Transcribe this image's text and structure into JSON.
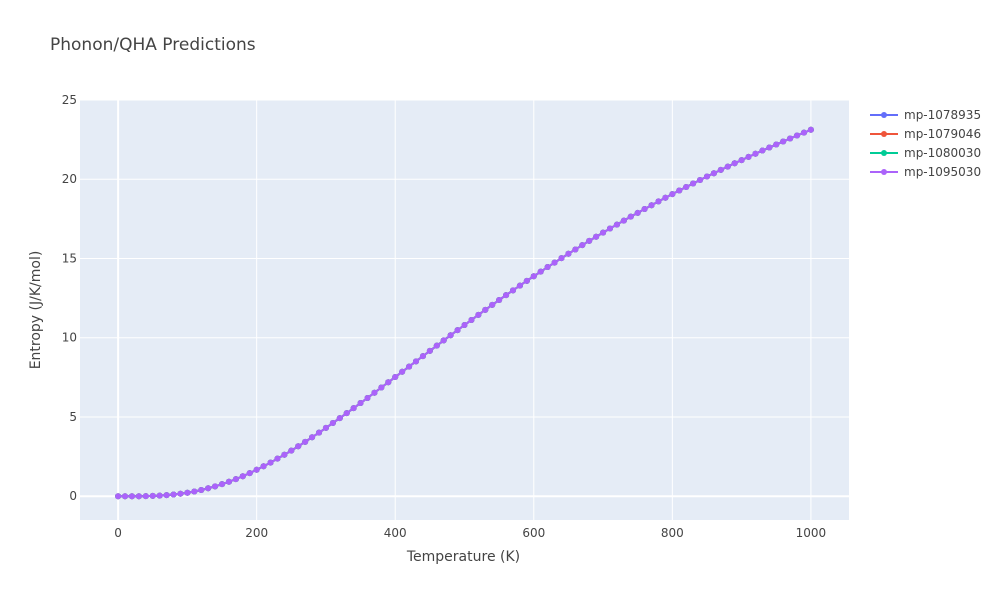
{
  "chart_data": {
    "type": "line",
    "title": "Phonon/QHA Predictions",
    "xlabel": "Temperature (K)",
    "ylabel": "Entropy (J/K/mol)",
    "xlim": [
      -55,
      1055
    ],
    "ylim": [
      -1.5,
      25
    ],
    "xticks": [
      0,
      200,
      400,
      600,
      800,
      1000
    ],
    "yticks": [
      0,
      5,
      10,
      15,
      20,
      25
    ],
    "grid": true,
    "legend": "right",
    "x": [
      0,
      10,
      20,
      30,
      40,
      50,
      60,
      70,
      80,
      90,
      100,
      110,
      120,
      130,
      140,
      150,
      160,
      170,
      180,
      190,
      200,
      210,
      220,
      230,
      240,
      250,
      260,
      270,
      280,
      290,
      300,
      310,
      320,
      330,
      340,
      350,
      360,
      370,
      380,
      390,
      400,
      410,
      420,
      430,
      440,
      450,
      460,
      470,
      480,
      490,
      500,
      510,
      520,
      530,
      540,
      550,
      560,
      570,
      580,
      590,
      600,
      610,
      620,
      630,
      640,
      650,
      660,
      670,
      680,
      690,
      700,
      710,
      720,
      730,
      740,
      750,
      760,
      770,
      780,
      790,
      800,
      810,
      820,
      830,
      840,
      850,
      860,
      870,
      880,
      890,
      900,
      910,
      920,
      930,
      940,
      950,
      960,
      970,
      980,
      990,
      1000
    ],
    "series": [
      {
        "name": "mp-1078935",
        "color": "#636efa",
        "values": [
          0,
          0,
          0,
          0,
          0.01,
          0.02,
          0.04,
          0.07,
          0.11,
          0.16,
          0.22,
          0.3,
          0.39,
          0.5,
          0.62,
          0.76,
          0.91,
          1.08,
          1.26,
          1.46,
          1.67,
          1.89,
          2.12,
          2.37,
          2.62,
          2.88,
          3.15,
          3.43,
          3.72,
          4.01,
          4.31,
          4.62,
          4.93,
          5.24,
          5.56,
          5.88,
          6.2,
          6.53,
          6.86,
          7.19,
          7.52,
          7.85,
          8.18,
          8.51,
          8.84,
          9.17,
          9.5,
          9.83,
          10.16,
          10.48,
          10.8,
          11.12,
          11.44,
          11.76,
          12.07,
          12.38,
          12.69,
          12.99,
          13.29,
          13.59,
          13.88,
          14.17,
          14.46,
          14.74,
          15.02,
          15.3,
          15.57,
          15.84,
          16.11,
          16.37,
          16.63,
          16.89,
          17.14,
          17.39,
          17.64,
          17.88,
          18.12,
          18.36,
          18.6,
          18.83,
          19.06,
          19.29,
          19.51,
          19.73,
          19.95,
          20.17,
          20.38,
          20.59,
          20.8,
          21.01,
          21.21,
          21.41,
          21.61,
          21.81,
          22,
          22.19,
          22.38,
          22.57,
          22.76,
          22.94,
          23.12
        ]
      },
      {
        "name": "mp-1079046",
        "color": "#ef553b",
        "values": [
          0,
          0,
          0,
          0,
          0.01,
          0.02,
          0.04,
          0.07,
          0.11,
          0.16,
          0.22,
          0.3,
          0.39,
          0.5,
          0.62,
          0.76,
          0.91,
          1.08,
          1.26,
          1.46,
          1.67,
          1.89,
          2.12,
          2.37,
          2.62,
          2.88,
          3.15,
          3.43,
          3.72,
          4.01,
          4.31,
          4.62,
          4.93,
          5.24,
          5.56,
          5.88,
          6.2,
          6.53,
          6.86,
          7.19,
          7.52,
          7.85,
          8.18,
          8.51,
          8.84,
          9.17,
          9.5,
          9.83,
          10.16,
          10.48,
          10.8,
          11.12,
          11.44,
          11.76,
          12.07,
          12.38,
          12.69,
          12.99,
          13.29,
          13.59,
          13.88,
          14.17,
          14.46,
          14.74,
          15.02,
          15.3,
          15.57,
          15.84,
          16.11,
          16.37,
          16.63,
          16.89,
          17.14,
          17.39,
          17.64,
          17.88,
          18.12,
          18.36,
          18.6,
          18.83,
          19.06,
          19.29,
          19.51,
          19.73,
          19.95,
          20.17,
          20.38,
          20.59,
          20.8,
          21.01,
          21.21,
          21.41,
          21.61,
          21.81,
          22,
          22.19,
          22.38,
          22.57,
          22.76,
          22.94,
          23.12
        ]
      },
      {
        "name": "mp-1080030",
        "color": "#00cc96",
        "values": [
          0,
          0,
          0,
          0,
          0.01,
          0.02,
          0.04,
          0.07,
          0.11,
          0.16,
          0.22,
          0.3,
          0.39,
          0.5,
          0.62,
          0.76,
          0.91,
          1.08,
          1.26,
          1.46,
          1.67,
          1.89,
          2.12,
          2.37,
          2.62,
          2.88,
          3.15,
          3.43,
          3.72,
          4.01,
          4.31,
          4.62,
          4.93,
          5.24,
          5.56,
          5.88,
          6.2,
          6.53,
          6.86,
          7.19,
          7.52,
          7.85,
          8.18,
          8.51,
          8.84,
          9.17,
          9.5,
          9.83,
          10.16,
          10.48,
          10.8,
          11.12,
          11.44,
          11.76,
          12.07,
          12.38,
          12.69,
          12.99,
          13.29,
          13.59,
          13.88,
          14.17,
          14.46,
          14.74,
          15.02,
          15.3,
          15.57,
          15.84,
          16.11,
          16.37,
          16.63,
          16.89,
          17.14,
          17.39,
          17.64,
          17.88,
          18.12,
          18.36,
          18.6,
          18.83,
          19.06,
          19.29,
          19.51,
          19.73,
          19.95,
          20.17,
          20.38,
          20.59,
          20.8,
          21.01,
          21.21,
          21.41,
          21.61,
          21.81,
          22,
          22.19,
          22.38,
          22.57,
          22.76,
          22.94,
          23.12
        ]
      },
      {
        "name": "mp-1095030",
        "color": "#ab63fa",
        "values": [
          0,
          0,
          0,
          0,
          0.01,
          0.02,
          0.04,
          0.07,
          0.11,
          0.16,
          0.22,
          0.3,
          0.39,
          0.5,
          0.62,
          0.76,
          0.91,
          1.08,
          1.26,
          1.46,
          1.67,
          1.89,
          2.12,
          2.37,
          2.62,
          2.88,
          3.15,
          3.43,
          3.72,
          4.01,
          4.31,
          4.62,
          4.93,
          5.24,
          5.56,
          5.88,
          6.2,
          6.53,
          6.86,
          7.19,
          7.52,
          7.85,
          8.18,
          8.51,
          8.84,
          9.17,
          9.5,
          9.83,
          10.16,
          10.48,
          10.8,
          11.12,
          11.44,
          11.76,
          12.07,
          12.38,
          12.69,
          12.99,
          13.29,
          13.59,
          13.88,
          14.17,
          14.46,
          14.74,
          15.02,
          15.3,
          15.57,
          15.84,
          16.11,
          16.37,
          16.63,
          16.89,
          17.14,
          17.39,
          17.64,
          17.88,
          18.12,
          18.36,
          18.6,
          18.83,
          19.06,
          19.29,
          19.51,
          19.73,
          19.95,
          20.17,
          20.38,
          20.59,
          20.8,
          21.01,
          21.21,
          21.41,
          21.61,
          21.81,
          22,
          22.19,
          22.38,
          22.57,
          22.76,
          22.94,
          23.12
        ]
      }
    ]
  },
  "colors": {
    "plot_background": "#e5ecf6",
    "grid": "#ffffff"
  }
}
